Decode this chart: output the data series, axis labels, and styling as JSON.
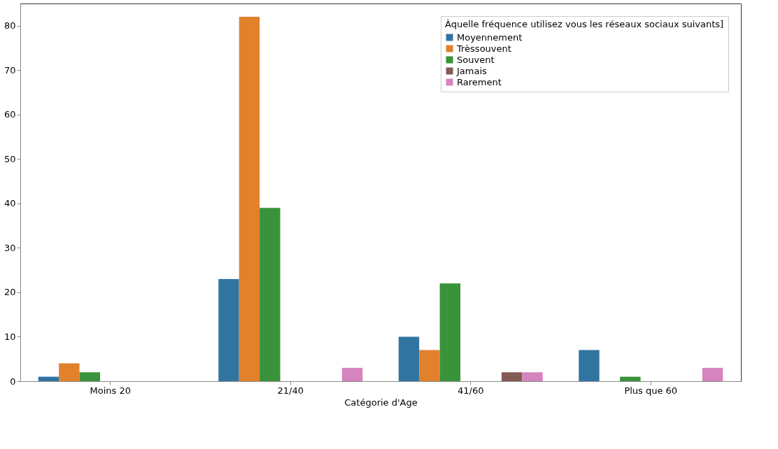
{
  "chart_data": {
    "type": "bar",
    "xlabel": "Catégorie d'Age",
    "legend_title": "Àquelle fréquence utilisez vous les réseaux sociaux suivants]",
    "categories": [
      "Moins 20",
      "21/40",
      "41/60",
      "Plus que 60"
    ],
    "series": [
      {
        "name": "Moyennement",
        "color": "#3274a1",
        "values": [
          1,
          23,
          10,
          7
        ]
      },
      {
        "name": "Trèssouvent",
        "color": "#e1812c",
        "values": [
          4,
          82,
          7,
          0
        ]
      },
      {
        "name": "Souvent",
        "color": "#3a923a",
        "values": [
          2,
          39,
          22,
          1
        ]
      },
      {
        "values": [
          null,
          null,
          null,
          null
        ]
      },
      {
        "values": [
          null,
          null,
          null,
          null
        ]
      },
      {
        "name": "Jamais",
        "color": "#845b53",
        "values": [
          0,
          0,
          2,
          0
        ]
      },
      {
        "name": "Rarement",
        "color": "#d684bd",
        "values": [
          0,
          3,
          2,
          3
        ]
      }
    ],
    "ylim": [
      0,
      85
    ],
    "yticks": [
      0,
      10,
      20,
      30,
      40,
      50,
      60,
      70,
      80
    ],
    "grid": false,
    "legend": "top right"
  }
}
